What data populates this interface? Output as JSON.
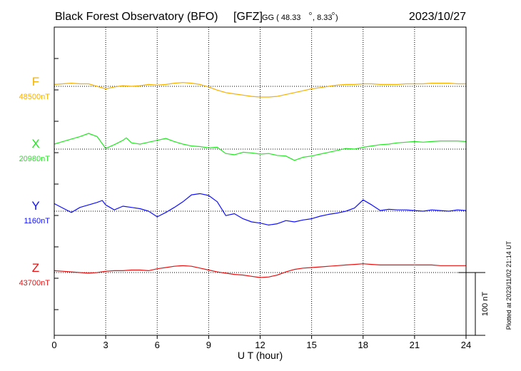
{
  "header": {
    "title": "Black Forest Observatory (BFO)",
    "org": "[GFZ]",
    "coord_prefix": "GG ( 48.33",
    "coord_mid": ",   8.33",
    "coord_suffix": ")",
    "degree_mark": "o",
    "date": "2023/10/27"
  },
  "footer": {
    "plotted": "Plotted at 2023/11/02 21:14 UT"
  },
  "chart_data": {
    "type": "line",
    "xlabel": "U T (hour)",
    "xlim": [
      0,
      24
    ],
    "xticks": [
      "0",
      "3",
      "6",
      "9",
      "12",
      "15",
      "18",
      "21",
      "24"
    ],
    "grid": true,
    "scale_bar": {
      "value": 100,
      "label": "100 nT"
    },
    "series": [
      {
        "name": "F",
        "baseline_label": "48500nT",
        "baseline": 48500,
        "color": "#f5b000",
        "x": [
          0,
          0.5,
          1,
          1.5,
          2,
          2.5,
          3,
          3.5,
          4,
          4.5,
          5,
          5.5,
          6,
          6.5,
          7,
          7.5,
          8,
          8.5,
          9,
          9.5,
          10,
          10.5,
          11,
          11.5,
          12,
          12.5,
          13,
          13.5,
          14,
          14.5,
          15,
          15.5,
          16,
          16.5,
          17,
          17.5,
          18,
          18.5,
          19,
          19.5,
          20,
          20.5,
          21,
          21.5,
          22,
          22.5,
          23,
          23.5,
          24
        ],
        "values": [
          48503,
          48504,
          48505,
          48504,
          48504,
          48500,
          48496,
          48499,
          48501,
          48500,
          48501,
          48503,
          48502,
          48503,
          48505,
          48506,
          48505,
          48503,
          48499,
          48494,
          48490,
          48488,
          48486,
          48484,
          48483,
          48483,
          48484,
          48487,
          48490,
          48493,
          48496,
          48498,
          48500,
          48502,
          48503,
          48503,
          48504,
          48504,
          48503,
          48503,
          48503,
          48504,
          48504,
          48504,
          48505,
          48505,
          48505,
          48504,
          48504
        ]
      },
      {
        "name": "X",
        "baseline_label": "20980nT",
        "baseline": 20980,
        "color": "#22e622",
        "x": [
          0,
          0.5,
          1,
          1.5,
          2,
          2.5,
          3,
          3.5,
          4,
          4.2,
          4.5,
          5,
          5.5,
          6,
          6.5,
          7,
          7.5,
          8,
          8.5,
          9,
          9.5,
          10,
          10.5,
          11,
          11.5,
          12,
          12.5,
          13,
          13.5,
          14,
          14.5,
          15,
          15.5,
          16,
          16.5,
          17,
          17.5,
          18,
          18.5,
          19,
          19.5,
          20,
          20.5,
          21,
          21.5,
          22,
          22.5,
          23,
          23.5,
          24
        ],
        "values": [
          20988,
          20992,
          20996,
          21000,
          21005,
          21000,
          20981,
          20987,
          20994,
          20998,
          20990,
          20988,
          20991,
          20994,
          20997,
          20992,
          20988,
          20985,
          20984,
          20982,
          20983,
          20973,
          20971,
          20975,
          20974,
          20972,
          20973,
          20970,
          20969,
          20962,
          20967,
          20969,
          20972,
          20975,
          20978,
          20981,
          20980,
          20983,
          20985,
          20987,
          20988,
          20990,
          20991,
          20992,
          20991,
          20992,
          20993,
          20993,
          20993,
          20992
        ]
      },
      {
        "name": "Y",
        "baseline_label": "1160nT",
        "baseline": 1160,
        "color": "#1010ff",
        "x": [
          0,
          0.5,
          1,
          1.5,
          2,
          2.5,
          2.8,
          3,
          3.5,
          4,
          4.5,
          5,
          5.5,
          6,
          6.5,
          7,
          7.5,
          8,
          8.5,
          9,
          9.5,
          10,
          10.5,
          11,
          11.5,
          12,
          12.5,
          13,
          13.5,
          14,
          14.5,
          15,
          15.5,
          16,
          16.5,
          17,
          17.5,
          18,
          18.5,
          19,
          19.5,
          20,
          20.5,
          21,
          21.5,
          22,
          22.5,
          23,
          23.5,
          24
        ],
        "values": [
          1172,
          1165,
          1158,
          1166,
          1170,
          1174,
          1177,
          1170,
          1162,
          1168,
          1166,
          1164,
          1160,
          1151,
          1158,
          1166,
          1175,
          1186,
          1188,
          1185,
          1175,
          1153,
          1156,
          1148,
          1143,
          1141,
          1138,
          1140,
          1145,
          1143,
          1146,
          1148,
          1152,
          1155,
          1157,
          1160,
          1165,
          1178,
          1170,
          1161,
          1163,
          1162,
          1162,
          1161,
          1160,
          1162,
          1161,
          1160,
          1162,
          1161
        ]
      },
      {
        "name": "Z",
        "baseline_label": "43700nT",
        "baseline": 43700,
        "color": "#e81010",
        "x": [
          0,
          0.5,
          1,
          1.5,
          2,
          2.5,
          3,
          3.5,
          4,
          4.5,
          5,
          5.5,
          6,
          6.5,
          7,
          7.5,
          8,
          8.5,
          9,
          9.5,
          10,
          10.5,
          11,
          11.5,
          12,
          12.5,
          13,
          13.5,
          14,
          14.5,
          15,
          15.5,
          16,
          16.5,
          17,
          17.5,
          18,
          18.5,
          19,
          19.5,
          20,
          20.5,
          21,
          21.5,
          22,
          22.5,
          23,
          23.5,
          24
        ],
        "values": [
          43703,
          43702,
          43701,
          43700,
          43699,
          43700,
          43702,
          43703,
          43703,
          43704,
          43704,
          43703,
          43706,
          43708,
          43710,
          43711,
          43710,
          43707,
          43704,
          43701,
          43699,
          43697,
          43696,
          43694,
          43692,
          43693,
          43696,
          43701,
          43705,
          43707,
          43708,
          43709,
          43710,
          43711,
          43712,
          43713,
          43714,
          43713,
          43712,
          43712,
          43712,
          43712,
          43712,
          43712,
          43712,
          43711,
          43711,
          43711,
          43711
        ]
      }
    ]
  }
}
